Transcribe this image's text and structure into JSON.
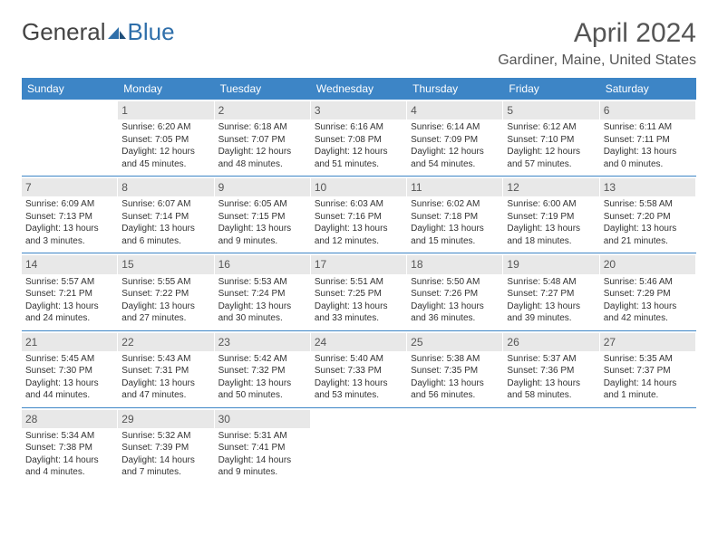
{
  "logo": {
    "general": "General",
    "blue": "Blue"
  },
  "title": "April 2024",
  "subtitle": "Gardiner, Maine, United States",
  "colors": {
    "header_bg": "#3d85c6",
    "header_text": "#ffffff",
    "daynum_bg": "#e8e8e8",
    "text": "#333333",
    "logo_gray": "#444444",
    "logo_blue": "#2f6faa",
    "title_color": "#555555"
  },
  "days_of_week": [
    "Sunday",
    "Monday",
    "Tuesday",
    "Wednesday",
    "Thursday",
    "Friday",
    "Saturday"
  ],
  "weeks": [
    [
      {
        "empty": true
      },
      {
        "day": "1",
        "sunrise": "Sunrise: 6:20 AM",
        "sunset": "Sunset: 7:05 PM",
        "daylight": "Daylight: 12 hours and 45 minutes."
      },
      {
        "day": "2",
        "sunrise": "Sunrise: 6:18 AM",
        "sunset": "Sunset: 7:07 PM",
        "daylight": "Daylight: 12 hours and 48 minutes."
      },
      {
        "day": "3",
        "sunrise": "Sunrise: 6:16 AM",
        "sunset": "Sunset: 7:08 PM",
        "daylight": "Daylight: 12 hours and 51 minutes."
      },
      {
        "day": "4",
        "sunrise": "Sunrise: 6:14 AM",
        "sunset": "Sunset: 7:09 PM",
        "daylight": "Daylight: 12 hours and 54 minutes."
      },
      {
        "day": "5",
        "sunrise": "Sunrise: 6:12 AM",
        "sunset": "Sunset: 7:10 PM",
        "daylight": "Daylight: 12 hours and 57 minutes."
      },
      {
        "day": "6",
        "sunrise": "Sunrise: 6:11 AM",
        "sunset": "Sunset: 7:11 PM",
        "daylight": "Daylight: 13 hours and 0 minutes."
      }
    ],
    [
      {
        "day": "7",
        "sunrise": "Sunrise: 6:09 AM",
        "sunset": "Sunset: 7:13 PM",
        "daylight": "Daylight: 13 hours and 3 minutes."
      },
      {
        "day": "8",
        "sunrise": "Sunrise: 6:07 AM",
        "sunset": "Sunset: 7:14 PM",
        "daylight": "Daylight: 13 hours and 6 minutes."
      },
      {
        "day": "9",
        "sunrise": "Sunrise: 6:05 AM",
        "sunset": "Sunset: 7:15 PM",
        "daylight": "Daylight: 13 hours and 9 minutes."
      },
      {
        "day": "10",
        "sunrise": "Sunrise: 6:03 AM",
        "sunset": "Sunset: 7:16 PM",
        "daylight": "Daylight: 13 hours and 12 minutes."
      },
      {
        "day": "11",
        "sunrise": "Sunrise: 6:02 AM",
        "sunset": "Sunset: 7:18 PM",
        "daylight": "Daylight: 13 hours and 15 minutes."
      },
      {
        "day": "12",
        "sunrise": "Sunrise: 6:00 AM",
        "sunset": "Sunset: 7:19 PM",
        "daylight": "Daylight: 13 hours and 18 minutes."
      },
      {
        "day": "13",
        "sunrise": "Sunrise: 5:58 AM",
        "sunset": "Sunset: 7:20 PM",
        "daylight": "Daylight: 13 hours and 21 minutes."
      }
    ],
    [
      {
        "day": "14",
        "sunrise": "Sunrise: 5:57 AM",
        "sunset": "Sunset: 7:21 PM",
        "daylight": "Daylight: 13 hours and 24 minutes."
      },
      {
        "day": "15",
        "sunrise": "Sunrise: 5:55 AM",
        "sunset": "Sunset: 7:22 PM",
        "daylight": "Daylight: 13 hours and 27 minutes."
      },
      {
        "day": "16",
        "sunrise": "Sunrise: 5:53 AM",
        "sunset": "Sunset: 7:24 PM",
        "daylight": "Daylight: 13 hours and 30 minutes."
      },
      {
        "day": "17",
        "sunrise": "Sunrise: 5:51 AM",
        "sunset": "Sunset: 7:25 PM",
        "daylight": "Daylight: 13 hours and 33 minutes."
      },
      {
        "day": "18",
        "sunrise": "Sunrise: 5:50 AM",
        "sunset": "Sunset: 7:26 PM",
        "daylight": "Daylight: 13 hours and 36 minutes."
      },
      {
        "day": "19",
        "sunrise": "Sunrise: 5:48 AM",
        "sunset": "Sunset: 7:27 PM",
        "daylight": "Daylight: 13 hours and 39 minutes."
      },
      {
        "day": "20",
        "sunrise": "Sunrise: 5:46 AM",
        "sunset": "Sunset: 7:29 PM",
        "daylight": "Daylight: 13 hours and 42 minutes."
      }
    ],
    [
      {
        "day": "21",
        "sunrise": "Sunrise: 5:45 AM",
        "sunset": "Sunset: 7:30 PM",
        "daylight": "Daylight: 13 hours and 44 minutes."
      },
      {
        "day": "22",
        "sunrise": "Sunrise: 5:43 AM",
        "sunset": "Sunset: 7:31 PM",
        "daylight": "Daylight: 13 hours and 47 minutes."
      },
      {
        "day": "23",
        "sunrise": "Sunrise: 5:42 AM",
        "sunset": "Sunset: 7:32 PM",
        "daylight": "Daylight: 13 hours and 50 minutes."
      },
      {
        "day": "24",
        "sunrise": "Sunrise: 5:40 AM",
        "sunset": "Sunset: 7:33 PM",
        "daylight": "Daylight: 13 hours and 53 minutes."
      },
      {
        "day": "25",
        "sunrise": "Sunrise: 5:38 AM",
        "sunset": "Sunset: 7:35 PM",
        "daylight": "Daylight: 13 hours and 56 minutes."
      },
      {
        "day": "26",
        "sunrise": "Sunrise: 5:37 AM",
        "sunset": "Sunset: 7:36 PM",
        "daylight": "Daylight: 13 hours and 58 minutes."
      },
      {
        "day": "27",
        "sunrise": "Sunrise: 5:35 AM",
        "sunset": "Sunset: 7:37 PM",
        "daylight": "Daylight: 14 hours and 1 minute."
      }
    ],
    [
      {
        "day": "28",
        "sunrise": "Sunrise: 5:34 AM",
        "sunset": "Sunset: 7:38 PM",
        "daylight": "Daylight: 14 hours and 4 minutes."
      },
      {
        "day": "29",
        "sunrise": "Sunrise: 5:32 AM",
        "sunset": "Sunset: 7:39 PM",
        "daylight": "Daylight: 14 hours and 7 minutes."
      },
      {
        "day": "30",
        "sunrise": "Sunrise: 5:31 AM",
        "sunset": "Sunset: 7:41 PM",
        "daylight": "Daylight: 14 hours and 9 minutes."
      },
      {
        "empty": true
      },
      {
        "empty": true
      },
      {
        "empty": true
      },
      {
        "empty": true
      }
    ]
  ]
}
